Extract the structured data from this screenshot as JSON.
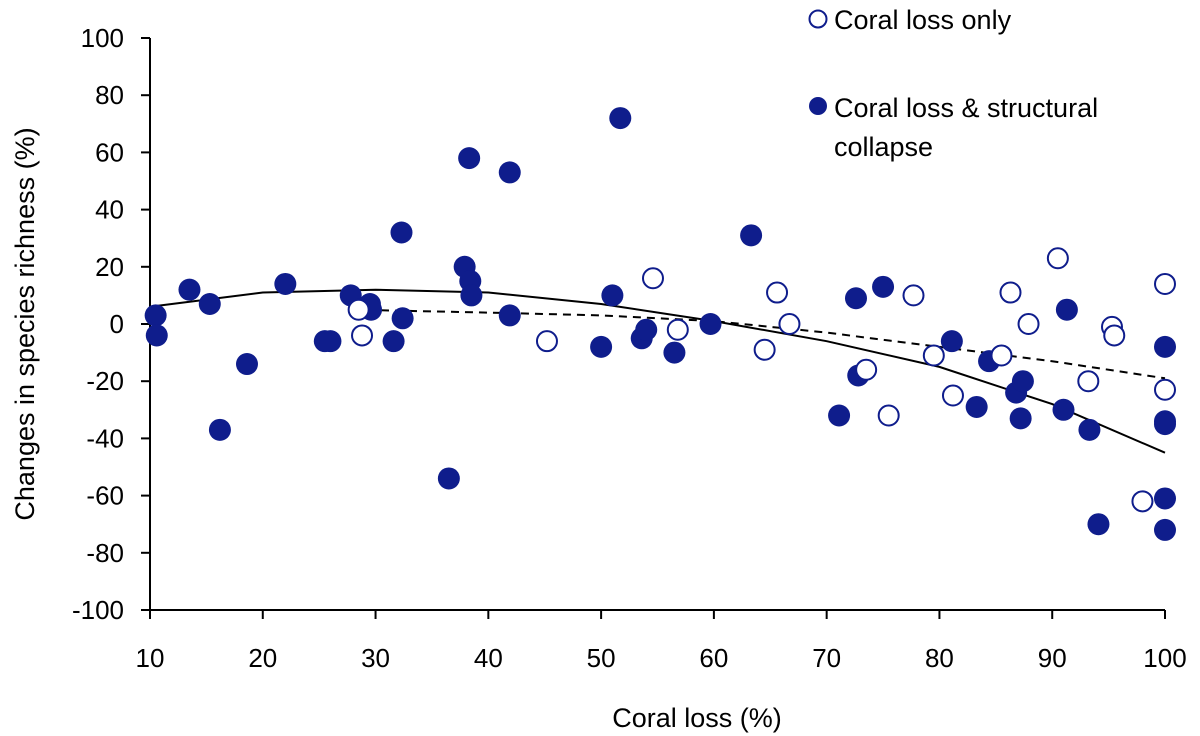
{
  "chart_data": {
    "type": "scatter",
    "title": "",
    "xlabel": "Coral loss (%)",
    "ylabel": "Changes in species richness (%)",
    "xlim": [
      10,
      100
    ],
    "ylim": [
      -100,
      100
    ],
    "xticks": [
      10,
      20,
      30,
      40,
      50,
      60,
      70,
      80,
      90,
      100
    ],
    "yticks": [
      -100,
      -80,
      -60,
      -40,
      -20,
      0,
      20,
      40,
      60,
      80,
      100
    ],
    "grid": false,
    "legend_position": "top-right",
    "colors": {
      "marker": "#0f1d8c",
      "open_fill": "#ffffff",
      "trend": "#000000"
    },
    "series": [
      {
        "name": "Coral loss only",
        "marker": "open-circle",
        "points": [
          [
            28.5,
            5
          ],
          [
            28.8,
            -4
          ],
          [
            45.2,
            -6
          ],
          [
            54.6,
            16
          ],
          [
            56.8,
            -2
          ],
          [
            64.5,
            -9
          ],
          [
            65.6,
            11
          ],
          [
            66.7,
            0
          ],
          [
            73.5,
            -16
          ],
          [
            75.5,
            -32
          ],
          [
            77.7,
            10
          ],
          [
            79.5,
            -11
          ],
          [
            81.2,
            -25
          ],
          [
            85.5,
            -11
          ],
          [
            86.3,
            11
          ],
          [
            87.9,
            0
          ],
          [
            90.5,
            23
          ],
          [
            93.2,
            -20
          ],
          [
            95.3,
            -1
          ],
          [
            95.5,
            -4
          ],
          [
            98,
            -62
          ],
          [
            100,
            14
          ],
          [
            100,
            -23
          ]
        ]
      },
      {
        "name": "Coral loss & structural collapse",
        "marker": "filled-circle",
        "points": [
          [
            10.5,
            3
          ],
          [
            10.6,
            -4
          ],
          [
            13.5,
            12
          ],
          [
            15.3,
            7
          ],
          [
            16.2,
            -37
          ],
          [
            18.6,
            -14
          ],
          [
            22,
            14
          ],
          [
            25.5,
            -6
          ],
          [
            26,
            -6
          ],
          [
            27.8,
            10
          ],
          [
            29.5,
            7
          ],
          [
            29.6,
            5
          ],
          [
            31.6,
            -6
          ],
          [
            32.3,
            32
          ],
          [
            32.4,
            2
          ],
          [
            36.5,
            -54
          ],
          [
            37.9,
            20
          ],
          [
            38.3,
            58
          ],
          [
            38.4,
            15
          ],
          [
            38.5,
            10
          ],
          [
            41.9,
            53
          ],
          [
            41.9,
            3
          ],
          [
            50,
            -8
          ],
          [
            51,
            10
          ],
          [
            51.7,
            72
          ],
          [
            53.6,
            -5
          ],
          [
            54,
            -2
          ],
          [
            56.5,
            -10
          ],
          [
            59.7,
            0
          ],
          [
            63.3,
            31
          ],
          [
            71.1,
            -32
          ],
          [
            72.6,
            9
          ],
          [
            72.8,
            -18
          ],
          [
            75,
            13
          ],
          [
            81.1,
            -6
          ],
          [
            83.3,
            -29
          ],
          [
            84.4,
            -13
          ],
          [
            86.8,
            -24
          ],
          [
            87.2,
            -33
          ],
          [
            87.4,
            -20
          ],
          [
            91,
            -30
          ],
          [
            91.3,
            5
          ],
          [
            93.3,
            -37
          ],
          [
            94.1,
            -70
          ],
          [
            100,
            -8
          ],
          [
            100,
            -34
          ],
          [
            100,
            -35
          ],
          [
            100,
            -61
          ],
          [
            100,
            -72
          ]
        ]
      }
    ],
    "trendlines": [
      {
        "style": "solid",
        "points": [
          [
            10,
            6
          ],
          [
            20,
            11
          ],
          [
            30,
            12
          ],
          [
            40,
            11
          ],
          [
            50,
            7
          ],
          [
            60,
            1
          ],
          [
            70,
            -6
          ],
          [
            80,
            -15
          ],
          [
            90,
            -28
          ],
          [
            100,
            -45
          ]
        ]
      },
      {
        "style": "dashed",
        "points": [
          [
            28,
            5
          ],
          [
            40,
            4
          ],
          [
            50,
            3
          ],
          [
            60,
            1
          ],
          [
            70,
            -3
          ],
          [
            80,
            -8
          ],
          [
            90,
            -13
          ],
          [
            100,
            -19
          ]
        ]
      }
    ]
  }
}
